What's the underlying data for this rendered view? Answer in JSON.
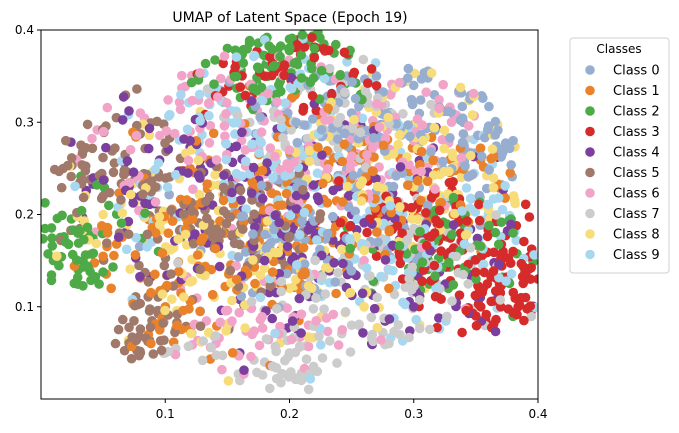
{
  "chart_data": {
    "type": "scatter",
    "title": "UMAP of Latent Space (Epoch 19)",
    "xlabel": "",
    "ylabel": "",
    "xlim": [
      0.0,
      0.4
    ],
    "ylim": [
      0.0,
      0.4
    ],
    "x_ticks": [
      0.1,
      0.2,
      0.3,
      0.4
    ],
    "y_ticks": [
      0.1,
      0.2,
      0.3,
      0.4
    ],
    "grid": false,
    "legend": {
      "title": "Classes",
      "placement": "outside-right"
    },
    "series": [
      {
        "name": "Class 0",
        "color": "#97aed0",
        "centers": [
          [
            0.27,
            0.3
          ],
          [
            0.37,
            0.28
          ],
          [
            0.21,
            0.18
          ]
        ],
        "spread": [
          0.07,
          0.06
        ],
        "count": 240,
        "x": [
          0.27,
          0.3,
          0.34,
          0.36,
          0.37,
          0.38,
          0.25,
          0.28,
          0.2,
          0.22
        ],
        "y": [
          0.35,
          0.34,
          0.3,
          0.29,
          0.27,
          0.28,
          0.31,
          0.22,
          0.18,
          0.12
        ]
      },
      {
        "name": "Class 1",
        "color": "#e9822a",
        "centers": [
          [
            0.2,
            0.2
          ],
          [
            0.12,
            0.14
          ],
          [
            0.28,
            0.24
          ]
        ],
        "spread": [
          0.09,
          0.08
        ],
        "count": 260,
        "x": [
          0.1,
          0.12,
          0.2,
          0.25,
          0.3,
          0.15,
          0.2,
          0.28
        ],
        "y": [
          0.1,
          0.25,
          0.3,
          0.27,
          0.2,
          0.08,
          0.14,
          0.12
        ]
      },
      {
        "name": "Class 2",
        "color": "#4daa47",
        "centers": [
          [
            0.02,
            0.16
          ],
          [
            0.17,
            0.37
          ],
          [
            0.22,
            0.38
          ],
          [
            0.33,
            0.17
          ]
        ],
        "spread": [
          0.05,
          0.05
        ],
        "count": 230,
        "x": [
          0.01,
          0.02,
          0.03,
          0.15,
          0.18,
          0.2,
          0.22,
          0.35,
          0.38
        ],
        "y": [
          0.15,
          0.17,
          0.14,
          0.38,
          0.39,
          0.39,
          0.38,
          0.13,
          0.18
        ]
      },
      {
        "name": "Class 3",
        "color": "#d62b2b",
        "centers": [
          [
            0.38,
            0.1
          ],
          [
            0.36,
            0.15
          ],
          [
            0.2,
            0.37
          ],
          [
            0.3,
            0.2
          ]
        ],
        "spread": [
          0.06,
          0.05
        ],
        "count": 240,
        "x": [
          0.35,
          0.37,
          0.39,
          0.4,
          0.38,
          0.2,
          0.22,
          0.3
        ],
        "y": [
          0.09,
          0.1,
          0.11,
          0.13,
          0.16,
          0.38,
          0.37,
          0.2
        ]
      },
      {
        "name": "Class 4",
        "color": "#7b3f9e",
        "centers": [
          [
            0.18,
            0.16
          ],
          [
            0.25,
            0.22
          ],
          [
            0.12,
            0.24
          ],
          [
            0.3,
            0.12
          ]
        ],
        "spread": [
          0.1,
          0.08
        ],
        "count": 250,
        "x": [
          0.12,
          0.18,
          0.25,
          0.3,
          0.16,
          0.22,
          0.08
        ],
        "y": [
          0.28,
          0.15,
          0.2,
          0.1,
          0.05,
          0.32,
          0.22
        ]
      },
      {
        "name": "Class 5",
        "color": "#a0796b",
        "centers": [
          [
            0.05,
            0.25
          ],
          [
            0.08,
            0.07
          ],
          [
            0.15,
            0.2
          ]
        ],
        "spread": [
          0.06,
          0.06
        ],
        "count": 220,
        "x": [
          0.02,
          0.05,
          0.06,
          0.08,
          0.1,
          0.15
        ],
        "y": [
          0.28,
          0.22,
          0.06,
          0.05,
          0.12,
          0.2
        ]
      },
      {
        "name": "Class 6",
        "color": "#f2a4c8",
        "centers": [
          [
            0.12,
            0.3
          ],
          [
            0.22,
            0.26
          ],
          [
            0.18,
            0.08
          ],
          [
            0.3,
            0.29
          ]
        ],
        "spread": [
          0.08,
          0.07
        ],
        "count": 240,
        "x": [
          0.08,
          0.12,
          0.2,
          0.3,
          0.17,
          0.26
        ],
        "y": [
          0.31,
          0.29,
          0.25,
          0.28,
          0.07,
          0.15
        ]
      },
      {
        "name": "Class 7",
        "color": "#cccccc",
        "centers": [
          [
            0.18,
            0.04
          ],
          [
            0.25,
            0.08
          ],
          [
            0.24,
            0.3
          ],
          [
            0.3,
            0.15
          ]
        ],
        "spread": [
          0.07,
          0.06
        ],
        "count": 230,
        "x": [
          0.16,
          0.18,
          0.2,
          0.25,
          0.28,
          0.24
        ],
        "y": [
          0.02,
          0.04,
          0.05,
          0.08,
          0.06,
          0.33
        ]
      },
      {
        "name": "Class 8",
        "color": "#f7dc7a",
        "centers": [
          [
            0.1,
            0.18
          ],
          [
            0.3,
            0.24
          ],
          [
            0.2,
            0.12
          ],
          [
            0.32,
            0.3
          ]
        ],
        "spread": [
          0.09,
          0.08
        ],
        "count": 250,
        "x": [
          0.05,
          0.1,
          0.2,
          0.3,
          0.32,
          0.26
        ],
        "y": [
          0.2,
          0.16,
          0.12,
          0.23,
          0.31,
          0.1
        ]
      },
      {
        "name": "Class 9",
        "color": "#a8d8f0",
        "centers": [
          [
            0.17,
            0.32
          ],
          [
            0.15,
            0.22
          ],
          [
            0.28,
            0.14
          ],
          [
            0.36,
            0.2
          ]
        ],
        "spread": [
          0.09,
          0.08
        ],
        "count": 250,
        "x": [
          0.17,
          0.2,
          0.15,
          0.28,
          0.36,
          0.1
        ],
        "y": [
          0.33,
          0.3,
          0.22,
          0.14,
          0.2,
          0.05
        ]
      }
    ]
  }
}
